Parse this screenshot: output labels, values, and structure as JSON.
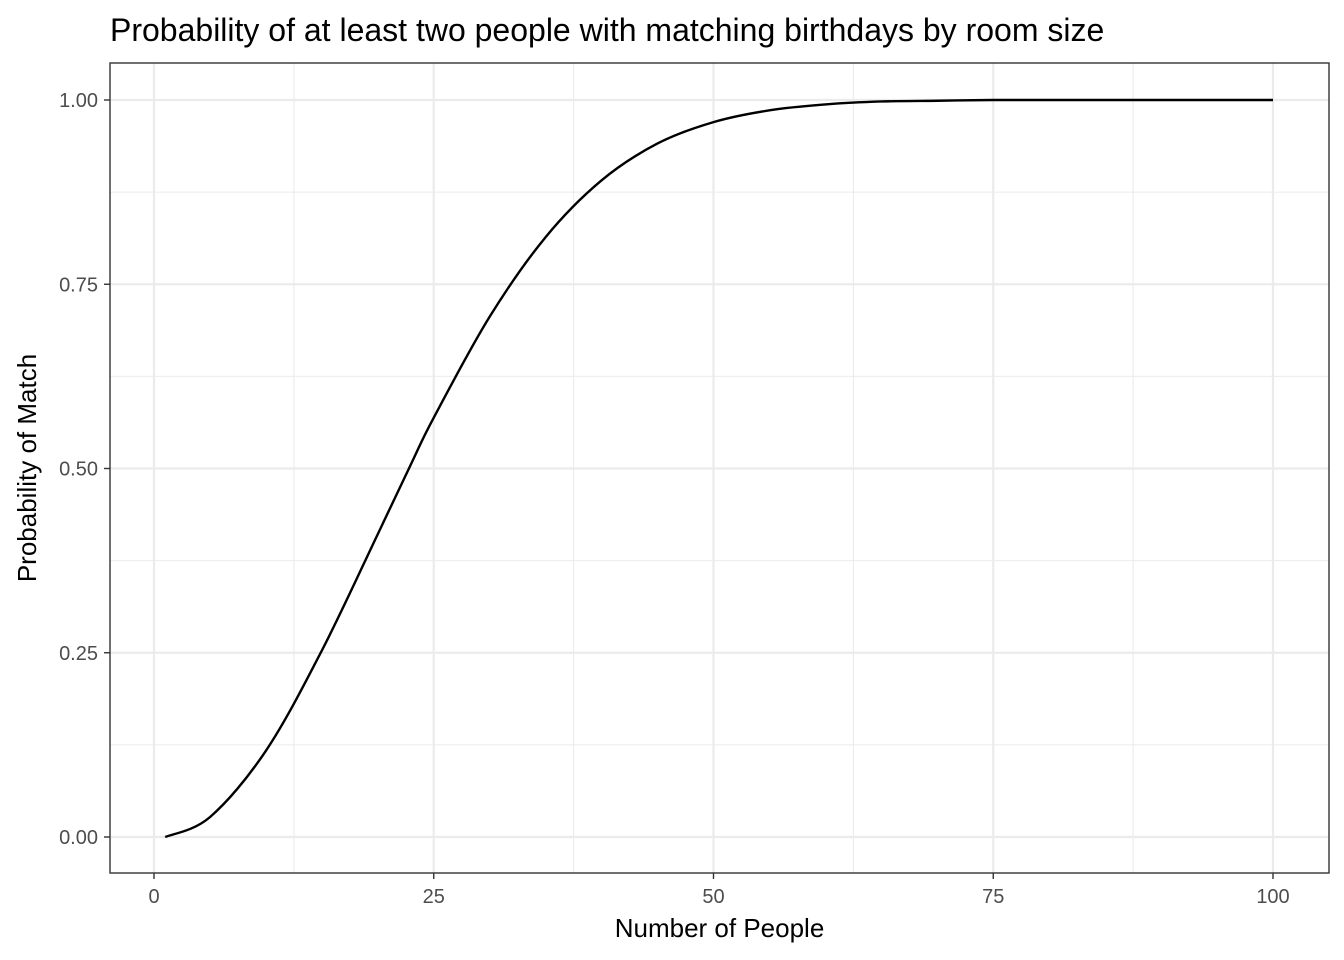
{
  "chart_data": {
    "type": "line",
    "title": "Probability of at least two people with matching birthdays by room size",
    "xlabel": "Number of People",
    "ylabel": "Probability of Match",
    "xlim": [
      1,
      100
    ],
    "ylim": [
      0,
      1
    ],
    "x_ticks": [
      0,
      25,
      50,
      75,
      100
    ],
    "x_tick_labels": [
      "0",
      "25",
      "50",
      "75",
      "100"
    ],
    "y_ticks": [
      0,
      0.25,
      0.5,
      0.75,
      1.0
    ],
    "y_tick_labels": [
      "0.00",
      "0.25",
      "0.50",
      "0.75",
      "1.00"
    ],
    "grid": true,
    "legend": "none",
    "series": [
      {
        "color": "#000000",
        "x": [
          1,
          5,
          10,
          15,
          20,
          23,
          25,
          30,
          35,
          40,
          45,
          50,
          55,
          60,
          65,
          70,
          75,
          80,
          90,
          100
        ],
        "y": [
          0.0,
          0.027,
          0.117,
          0.253,
          0.411,
          0.507,
          0.569,
          0.706,
          0.814,
          0.891,
          0.941,
          0.97,
          0.986,
          0.994,
          0.998,
          0.999,
          1.0,
          1.0,
          1.0,
          1.0
        ]
      }
    ]
  }
}
